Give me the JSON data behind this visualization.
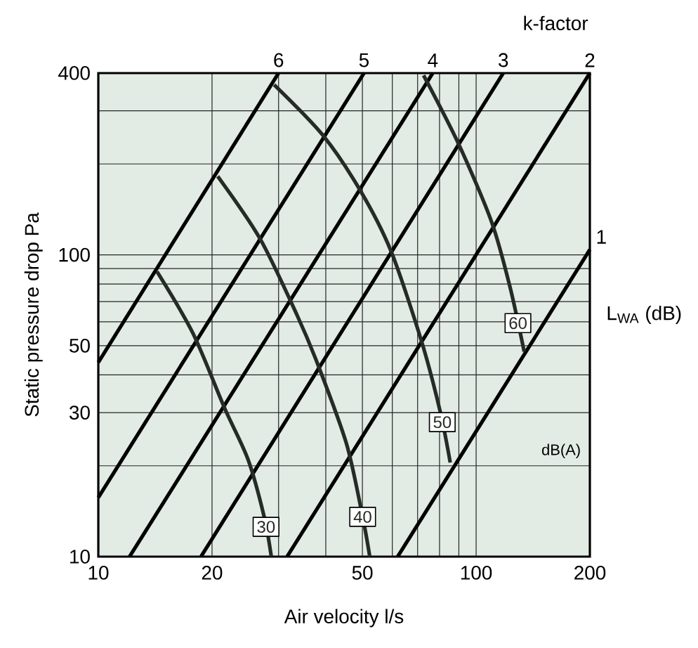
{
  "chart_data": {
    "type": "line",
    "xlabel": "Air velocity l/s",
    "ylabel": "Static pressure drop Pa",
    "annotations": [
      "k-factor",
      "L$_{WA}$ (dB)",
      "dB(A)"
    ],
    "log": "xy",
    "grid": true,
    "marker": "none",
    "line_style": "solid",
    "xlim": [
      10,
      200
    ],
    "ylim": [
      10,
      400
    ],
    "xticks": [
      10,
      20,
      {
        "value": 30,
        "label": null
      },
      {
        "value": 40,
        "label": null
      },
      50,
      {
        "value": 60,
        "label": null
      },
      {
        "value": 70,
        "label": null
      },
      {
        "value": 80,
        "label": null
      },
      {
        "value": 90,
        "label": null
      },
      100,
      200
    ],
    "yticks": [
      10,
      {
        "value": 20,
        "label": null
      },
      30,
      {
        "value": 40,
        "label": null
      },
      50,
      {
        "value": 60,
        "label": null
      },
      {
        "value": 70,
        "label": null
      },
      {
        "value": 80,
        "label": null
      },
      {
        "value": 90,
        "label": null
      },
      100,
      {
        "value": 200,
        "label": null
      },
      {
        "value": 300,
        "label": null
      },
      400
    ],
    "series": [
      {
        "name": "6",
        "color": "#000000",
        "x": [
          10,
          30
        ],
        "values": [
          44,
          400
        ]
      },
      {
        "name": "5",
        "color": "#000000",
        "x": [
          10,
          50.5
        ],
        "values": [
          15.7,
          400
        ]
      },
      {
        "name": "4",
        "color": "#000000",
        "x": [
          12.1,
          76.8
        ],
        "values": [
          10,
          400
        ]
      },
      {
        "name": "3",
        "color": "#000000",
        "x": [
          18.7,
          118
        ],
        "values": [
          10,
          400
        ]
      },
      {
        "name": "2",
        "color": "#000000",
        "x": [
          31.6,
          200
        ],
        "values": [
          10,
          400
        ]
      },
      {
        "name": "1",
        "color": "#000000",
        "x": [
          62,
          200
        ],
        "values": [
          10,
          104
        ]
      },
      {
        "name": "30",
        "color": "#262b26",
        "x": [
          14.3,
          17.8,
          21.6,
          24.9,
          27.5,
          28.7
        ],
        "values": [
          88,
          55,
          31,
          21,
          13.5,
          10
        ]
      },
      {
        "name": "40",
        "color": "#262b26",
        "x": [
          20.7,
          26.8,
          33.6,
          38.2,
          45.4,
          50.1,
          52.3
        ],
        "values": [
          182,
          113,
          63,
          43,
          23.6,
          13.5,
          10
        ]
      },
      {
        "name": "50",
        "color": "#262b26",
        "x": [
          29.2,
          39.3,
          49.4,
          59.5,
          71.6,
          80.3,
          85.4
        ],
        "values": [
          366,
          249,
          163,
          103,
          52,
          30.3,
          20.5
        ]
      },
      {
        "name": "60",
        "color": "#262b26",
        "x": [
          72.6,
          90,
          110,
          123,
          134
        ],
        "values": [
          393,
          232,
          128,
          78,
          47.8
        ]
      }
    ]
  }
}
